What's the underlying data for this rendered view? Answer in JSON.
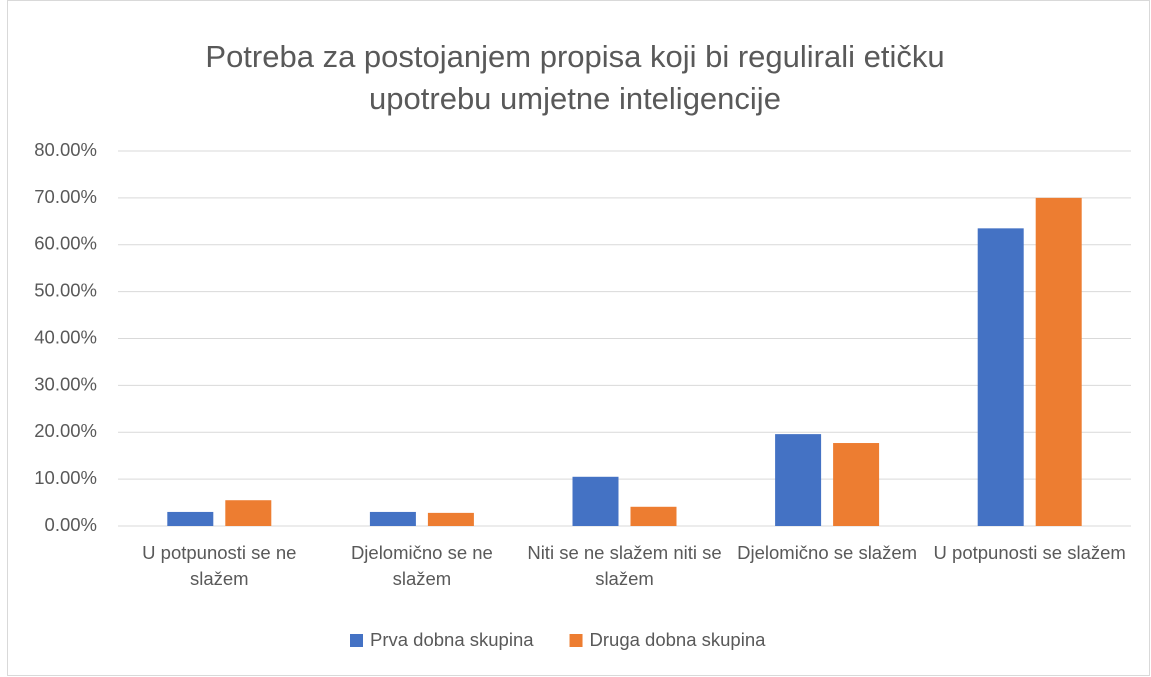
{
  "chart_data": {
    "type": "bar",
    "title": "Potreba za postojanjem propisa koji bi regulirali etičku upotrebu umjetne inteligencije",
    "categories": [
      "U potpunosti se ne slažem",
      "Djelomično se ne slažem",
      "Niti se ne slažem niti se slažem",
      "Djelomično se slažem",
      "U potpunosti se slažem"
    ],
    "series": [
      {
        "name": "Prva dobna skupina",
        "color": "#4472c4",
        "values": [
          3.0,
          3.0,
          10.5,
          19.6,
          63.5
        ]
      },
      {
        "name": "Druga dobna skupina",
        "color": "#ed7d31",
        "values": [
          5.5,
          2.8,
          4.1,
          17.7,
          70.0
        ]
      }
    ],
    "ylim": [
      0,
      80
    ],
    "yticks": [
      {
        "value": 0,
        "label": "0.00%"
      },
      {
        "value": 10,
        "label": "10.00%"
      },
      {
        "value": 20,
        "label": "20.00%"
      },
      {
        "value": 30,
        "label": "30.00%"
      },
      {
        "value": 40,
        "label": "40.00%"
      },
      {
        "value": 50,
        "label": "50.00%"
      },
      {
        "value": 60,
        "label": "60.00%"
      },
      {
        "value": 70,
        "label": "70.00%"
      },
      {
        "value": 80,
        "label": "80.00%"
      }
    ],
    "grid": true,
    "legend": "bottom"
  }
}
